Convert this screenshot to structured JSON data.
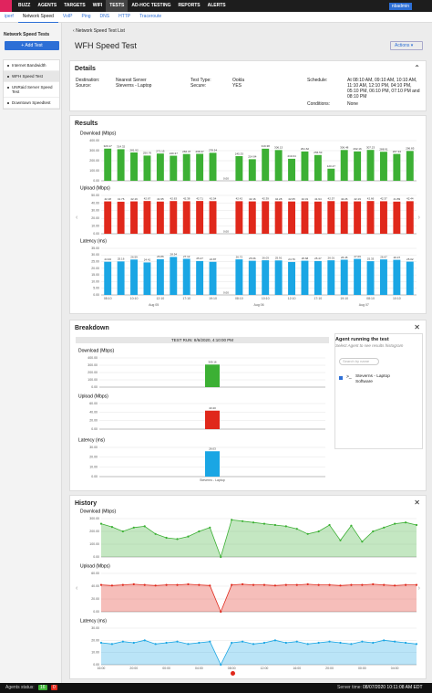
{
  "nav": {
    "items": [
      "BUZZ",
      "AGENTS",
      "TARGETS",
      "WIFI",
      "TESTS",
      "AD-HOC TESTING",
      "REPORTS",
      "ALERTS"
    ],
    "user": "nbadmin"
  },
  "subnav": [
    "iperf",
    "Network Speed",
    "VoIP",
    "Ping",
    "DNS",
    "HTTP",
    "Traceroute"
  ],
  "sidebar": {
    "title": "Network Speed Tests",
    "add_button": "+ Add Test",
    "items": [
      "Internet Bandwidth",
      "WFH Speed Test",
      "UNRaid Server Speed Test",
      "Downtown Speedtest"
    ]
  },
  "breadcrumb": "Network Speed Test List",
  "page_title": "WFH Speed Test",
  "actions": "Actions",
  "details": {
    "title": "Details",
    "destination_label": "Destination:",
    "destination": "Nearest Server",
    "source_label": "Source:",
    "source": "Steverns - Laptop",
    "test_type_label": "Test Type:",
    "test_type": "Ookla",
    "secure_label": "Secure:",
    "secure": "YES",
    "schedule_label": "Schedule:",
    "schedule": "At 08:10 AM, 09:10 AM, 10:10 AM, 11:10 AM, 12:10 PM, 04:10 PM, 05:10 PM, 06:10 PM, 07:10 PM and 08:10 PM",
    "conditions_label": "Conditions:",
    "conditions": "None"
  },
  "results": {
    "title": "Results"
  },
  "breakdown": {
    "title": "Breakdown",
    "test_run": "TEST RUN: 8/6/2020, 4:10:00 PM",
    "agent_title": "Agent running the test",
    "agent_hint": "Select Agent to see results histogram",
    "search_placeholder": "Search by name",
    "agent": "Steverns - Laptop Software"
  },
  "history": {
    "title": "History"
  },
  "footer": {
    "agents_label": "Agents status:",
    "up": 16,
    "down": 0,
    "server_time_label": "Server time:",
    "server_time": "08/07/2020 10:11:08 AM EDT"
  },
  "chart_data": [
    {
      "type": "bar",
      "title": "Download (Mbps)",
      "color": "#3cb034",
      "values": [
        320.17,
        314.32,
        281.92,
        250.76,
        271.15,
        249.37,
        266.37,
        268.37,
        278.54,
        0,
        245.33,
        214.84,
        319.38,
        306.13,
        219.04,
        291.62,
        256.53,
        120.47,
        306.48,
        292.16,
        307.23,
        288.91,
        267.34,
        296.85
      ],
      "value_labels": [
        "320.17",
        "314.32",
        "281.92",
        "250.76",
        "271.15",
        "249.37",
        "266.37",
        "268.37",
        "278.54",
        "0.00",
        "245.33",
        "214.84",
        "319.38",
        "306.13",
        "219.04",
        "291.62",
        "256.53",
        "120.47",
        "306.48",
        "292.16",
        "307.23",
        "288.91",
        "267.34",
        "296.85"
      ],
      "ylim": [
        0,
        400
      ],
      "yticks": [
        {
          "value": 0,
          "label": "0.00"
        },
        {
          "value": 100,
          "label": "100.00"
        },
        {
          "value": 200,
          "label": "200.00"
        },
        {
          "value": 300,
          "label": "300.00"
        },
        {
          "value": 400,
          "label": "400.00"
        }
      ],
      "grid": true
    },
    {
      "type": "bar",
      "title": "Upload (Mbps)",
      "color": "#e0281b",
      "values": [
        42.18,
        41.76,
        42.19,
        42.67,
        41.95,
        42.63,
        42.38,
        42.71,
        42.54,
        0,
        42.42,
        42.16,
        42.39,
        42.28,
        42.05,
        42.31,
        41.94,
        42.57,
        42.26,
        42.19,
        42.66,
        42.37,
        41.89,
        42.44
      ],
      "value_labels": [
        "42.18",
        "41.76",
        "42.19",
        "42.67",
        "41.95",
        "42.63",
        "42.38",
        "42.71",
        "42.54",
        "0.00",
        "42.42",
        "42.16",
        "42.39",
        "42.28",
        "42.05",
        "42.31",
        "41.94",
        "42.57",
        "42.26",
        "42.19",
        "42.66",
        "42.37",
        "41.89",
        "42.44"
      ],
      "ylim": [
        0,
        50
      ],
      "yticks": [
        {
          "value": 0,
          "label": "0.00"
        },
        {
          "value": 10,
          "label": "10.00"
        },
        {
          "value": 20,
          "label": "20.00"
        },
        {
          "value": 30,
          "label": "30.00"
        },
        {
          "value": 40,
          "label": "40.00"
        },
        {
          "value": 50,
          "label": "50.00"
        }
      ],
      "grid": true
    },
    {
      "type": "bar",
      "title": "Latency (ms)",
      "color": "#1aa6e4",
      "values": [
        24.93,
        25.16,
        26.59,
        24.41,
        26.86,
        28.54,
        27.12,
        25.47,
        24.87,
        0,
        26.72,
        25.66,
        26.03,
        25.91,
        24.76,
        25.68,
        25.47,
        26.01,
        26.45,
        27.06,
        25.33,
        26.67,
        26.37,
        25.02
      ],
      "value_labels": [
        "24.93",
        "25.16",
        "26.59",
        "24.41",
        "26.86",
        "28.54",
        "27.12",
        "25.47",
        "24.87",
        "0.00",
        "26.72",
        "25.66",
        "26.03",
        "25.91",
        "24.76",
        "25.68",
        "25.47",
        "26.01",
        "26.45",
        "27.06",
        "25.33",
        "26.67",
        "26.37",
        "25.02"
      ],
      "categories": [
        "08:10",
        null,
        "10:10",
        null,
        "12:10",
        null,
        "17:10",
        null,
        "19:10",
        null,
        "08:10",
        null,
        "10:10",
        null,
        "12:10",
        null,
        "17:10",
        null,
        "19:10",
        null,
        "08:10",
        null,
        "10:10",
        null
      ],
      "date_labels": [
        "Aug 05",
        "Aug 06",
        "Aug 07"
      ],
      "ylim": [
        0,
        35
      ],
      "yticks": [
        {
          "value": 0,
          "label": "0.00"
        },
        {
          "value": 5,
          "label": "5.00"
        },
        {
          "value": 10,
          "label": "10.00"
        },
        {
          "value": 15,
          "label": "15.00"
        },
        {
          "value": 20,
          "label": "20.00"
        },
        {
          "value": 25,
          "label": "25.00"
        },
        {
          "value": 30,
          "label": "30.00"
        },
        {
          "value": 35,
          "label": "35.00"
        }
      ],
      "grid": true
    },
    {
      "type": "bar",
      "title": "Download (Mbps)",
      "color": "#3cb034",
      "values": [
        309.16
      ],
      "ylim": [
        0,
        400
      ],
      "yticks": [
        {
          "value": 0,
          "label": "0.00"
        },
        {
          "value": 100,
          "label": "100.00"
        },
        {
          "value": 200,
          "label": "200.00"
        },
        {
          "value": 300,
          "label": "300.00"
        },
        {
          "value": 400,
          "label": "400.00"
        }
      ],
      "grid": true
    },
    {
      "type": "bar",
      "title": "Upload (Mbps)",
      "color": "#e0281b",
      "values": [
        43.4
      ],
      "value_labels": [
        "43.40"
      ],
      "ylim": [
        0,
        60
      ],
      "yticks": [
        {
          "value": 0,
          "label": "0.00"
        },
        {
          "value": 20,
          "label": "20.00"
        },
        {
          "value": 40,
          "label": "40.00"
        },
        {
          "value": 60,
          "label": "60.00"
        }
      ],
      "grid": true
    },
    {
      "type": "bar",
      "title": "Latency (ms)",
      "color": "#1aa6e4",
      "values": [
        26.03
      ],
      "categories": [
        "Steverns - Laptop"
      ],
      "ylim": [
        0,
        30
      ],
      "yticks": [
        {
          "value": 0,
          "label": "0.00"
        },
        {
          "value": 10,
          "label": "10.00"
        },
        {
          "value": 20,
          "label": "20.00"
        },
        {
          "value": 30,
          "label": "30.00"
        }
      ],
      "grid": true
    },
    {
      "type": "area",
      "title": "Download (Mbps)",
      "color": "#3cb034",
      "values": [
        260,
        235,
        200,
        230,
        240,
        180,
        150,
        140,
        160,
        200,
        230,
        0,
        290,
        280,
        270,
        260,
        250,
        240,
        220,
        180,
        200,
        250,
        130,
        245,
        120,
        200,
        230,
        260,
        270,
        250
      ],
      "ylim": [
        0,
        300
      ],
      "yticks": [
        {
          "value": 0,
          "label": "0.00"
        },
        {
          "value": 100,
          "label": "100.00"
        },
        {
          "value": 200,
          "label": "200.00"
        },
        {
          "value": 300,
          "label": "300.00"
        }
      ],
      "grid": true
    },
    {
      "type": "area",
      "title": "Upload (Mbps)",
      "color": "#e0281b",
      "values": [
        42,
        41,
        42,
        43,
        42,
        41,
        42,
        42,
        43,
        42,
        41,
        0,
        42,
        43,
        42,
        42,
        41,
        42,
        42,
        43,
        42,
        42,
        41,
        42,
        42,
        43,
        42,
        41,
        42,
        42
      ],
      "ylim": [
        0,
        60
      ],
      "yticks": [
        {
          "value": 0,
          "label": "0.00"
        },
        {
          "value": 20,
          "label": "20.00"
        },
        {
          "value": 40,
          "label": "40.00"
        },
        {
          "value": 60,
          "label": "60.00"
        }
      ],
      "grid": true
    },
    {
      "type": "area",
      "title": "Latency (ms)",
      "color": "#1aa6e4",
      "values": [
        18,
        17,
        19,
        18,
        20,
        17,
        18,
        19,
        17,
        18,
        19,
        0,
        18,
        19,
        17,
        18,
        20,
        18,
        19,
        17,
        18,
        19,
        18,
        17,
        19,
        18,
        20,
        19,
        18,
        17
      ],
      "categories": [
        "16:00",
        null,
        null,
        "20:00",
        null,
        null,
        "00:00",
        null,
        null,
        "04:00",
        null,
        null,
        "08:00",
        null,
        null,
        "12:00",
        null,
        null,
        "16:00",
        null,
        null,
        "20:00",
        null,
        null,
        "00:00",
        null,
        null,
        "04:00",
        null,
        null
      ],
      "ylim": [
        0,
        30
      ],
      "yticks": [
        {
          "value": 0,
          "label": "0.00"
        },
        {
          "value": 10,
          "label": "10.00"
        },
        {
          "value": 20,
          "label": "20.00"
        },
        {
          "value": 30,
          "label": "30.00"
        }
      ],
      "grid": true
    }
  ]
}
